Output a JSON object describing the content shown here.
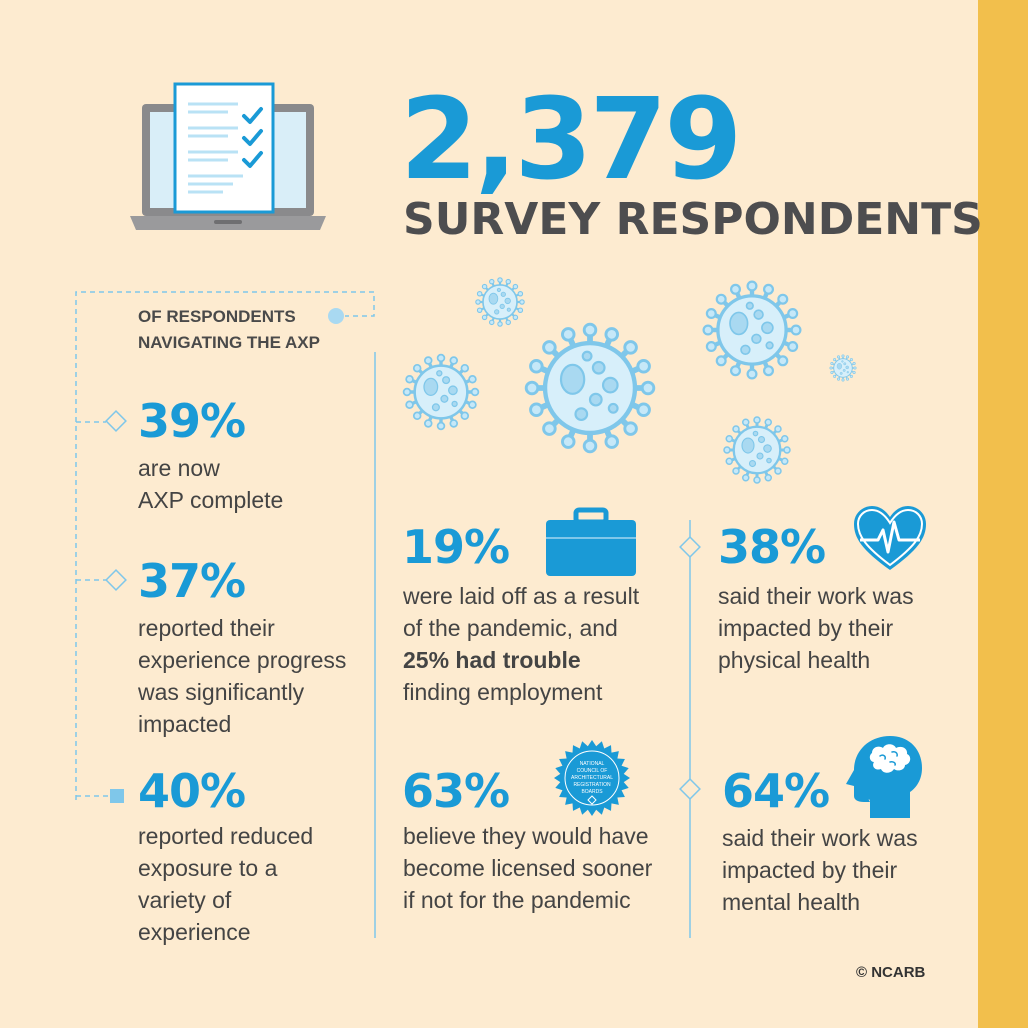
{
  "header": {
    "count": "2,379",
    "label": "SURVEY RESPONDENTS"
  },
  "axp_section": {
    "heading_line1": "OF RESPONDENTS",
    "heading_line2": "NAVIGATING THE AXP",
    "stats": [
      {
        "percent": "39%",
        "lines": [
          "are now",
          "AXP complete"
        ]
      },
      {
        "percent": "37%",
        "lines": [
          "reported their",
          "experience progress",
          "was significantly",
          "impacted"
        ]
      },
      {
        "percent": "40%",
        "lines": [
          "reported reduced",
          "exposure to a",
          "variety of",
          "experience"
        ]
      }
    ]
  },
  "pandemic_stats": {
    "laid_off": {
      "percent": "19%",
      "line1": "were laid off as a result",
      "line2": "of the pandemic, and",
      "line3_bold": "25% had trouble",
      "line4": "finding employment"
    },
    "licensed": {
      "percent": "63%",
      "lines": [
        "believe they would have",
        "become licensed sooner",
        "if not for the pandemic"
      ]
    },
    "physical": {
      "percent": "38%",
      "lines": [
        "said their work was",
        "impacted by their",
        "physical health"
      ]
    },
    "mental": {
      "percent": "64%",
      "lines": [
        "said their work was",
        "impacted by their",
        "mental health"
      ]
    }
  },
  "seal": {
    "lines": [
      "NATIONAL",
      "COUNCIL OF",
      "ARCHITECTURAL",
      "REGISTRATION",
      "BOARDS"
    ]
  },
  "footer": {
    "copyright": "© NCARB"
  },
  "icons": [
    "laptop-checklist-icon",
    "virus-icon",
    "briefcase-icon",
    "heart-pulse-icon",
    "seal-badge-icon",
    "head-brain-icon"
  ],
  "colors": {
    "background": "#fdebd0",
    "accent_blue": "#1a9ad6",
    "light_blue": "#b9e2f5",
    "text_dark": "#4d4d4f",
    "side_bar": "#f2bf4c"
  }
}
